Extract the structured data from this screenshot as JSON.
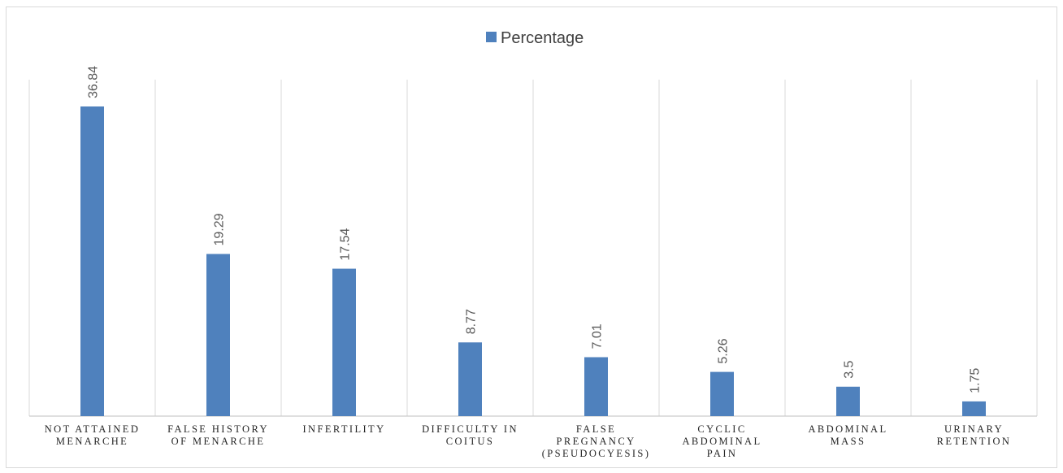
{
  "chart_data": {
    "type": "bar",
    "categories": [
      [
        "NOT ATTAINED",
        "MENARCHE"
      ],
      [
        "FALSE HISTORY",
        "OF MENARCHE"
      ],
      [
        "INFERTILITY"
      ],
      [
        "DIFFICULTY IN",
        "COITUS"
      ],
      [
        "FALSE",
        "PREGNANCY",
        "(PSEUDOCYESIS)"
      ],
      [
        "CYCLIC",
        "ABDOMINAL",
        "PAIN"
      ],
      [
        "ABDOMINAL",
        "MASS"
      ],
      [
        "URINARY",
        "RETENTION"
      ]
    ],
    "series": [
      {
        "name": "Percentage",
        "values": [
          36.84,
          19.29,
          17.54,
          8.77,
          7.01,
          5.26,
          3.5,
          1.75
        ],
        "value_labels": [
          "36.84",
          "19.29",
          "17.54",
          "8.77",
          "7.01",
          "5.26",
          "3.5",
          "1.75"
        ],
        "color": "#4f81bd"
      }
    ],
    "ylim": [
      0,
      40
    ],
    "grid": "vertical separators",
    "legend": "top-center",
    "title": "",
    "xlabel": "",
    "ylabel": ""
  },
  "colors": {
    "bar": "#4f81bd",
    "gridline": "#d9d9d9",
    "axis": "#bfbfbf"
  }
}
